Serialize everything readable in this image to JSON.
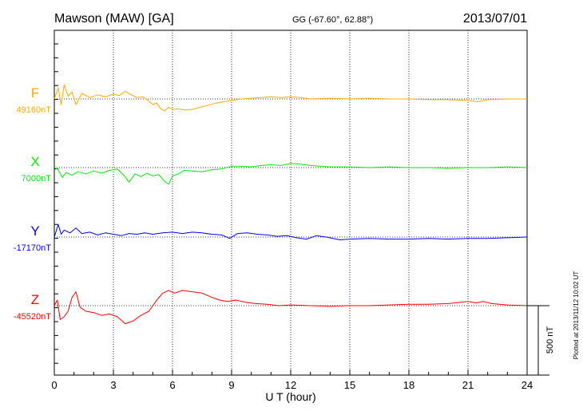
{
  "header": {
    "station": "Mawson (MAW)  [GA]",
    "coords": "GG (-67.60°,  62.88°)",
    "date": "2013/07/01"
  },
  "footer": {
    "plotted": "Plotted at 2013/11/12 10:02 UT"
  },
  "chart_data": {
    "type": "line",
    "xlabel": "U T (hour)",
    "xlim": [
      0,
      24
    ],
    "xticks": [
      0,
      3,
      6,
      9,
      12,
      15,
      18,
      21,
      24
    ],
    "scale_bar_label": "500 nT",
    "scale_bar_nT": 500,
    "grid": "dotted, every 3 hours and at each component baseline",
    "series": [
      {
        "name": "F",
        "baseline_label": "49160nT",
        "baseline": 49160,
        "color": "#ffaa00",
        "x": [
          0,
          0.2,
          0.35,
          0.5,
          0.7,
          0.9,
          1.1,
          1.4,
          1.8,
          2.2,
          2.6,
          3.0,
          3.3,
          3.6,
          3.9,
          4.2,
          4.5,
          4.8,
          5.0,
          5.2,
          5.4,
          5.6,
          5.8,
          6.0,
          6.3,
          6.6,
          7.0,
          7.4,
          7.8,
          8.2,
          8.6,
          9.0,
          9.5,
          10.0,
          10.5,
          11.0,
          11.5,
          12.0,
          12.5,
          13.0,
          14.0,
          15.0,
          16.0,
          17.0,
          18.0,
          19.0,
          20.0,
          21.0,
          21.5,
          22.0,
          23.0,
          24.0
        ],
        "y": [
          49160,
          49240,
          49120,
          49260,
          49180,
          49210,
          49120,
          49200,
          49170,
          49190,
          49175,
          49195,
          49185,
          49215,
          49190,
          49170,
          49175,
          49145,
          49120,
          49130,
          49090,
          49075,
          49100,
          49085,
          49090,
          49080,
          49085,
          49100,
          49115,
          49130,
          49140,
          49150,
          49160,
          49165,
          49170,
          49175,
          49170,
          49175,
          49170,
          49160,
          49165,
          49160,
          49165,
          49160,
          49160,
          49155,
          49155,
          49150,
          49140,
          49155,
          49160,
          49160
        ]
      },
      {
        "name": "X",
        "baseline_label": "7000nT",
        "baseline": 7000,
        "color": "#00ee00",
        "x": [
          0,
          0.2,
          0.4,
          0.6,
          0.9,
          1.2,
          1.6,
          2.0,
          2.4,
          2.8,
          3.2,
          3.5,
          3.8,
          4.1,
          4.4,
          4.7,
          5.0,
          5.3,
          5.6,
          5.8,
          6.0,
          6.3,
          6.6,
          7.0,
          7.5,
          8.0,
          8.5,
          9.0,
          9.5,
          10.0,
          10.5,
          11.0,
          11.5,
          12.0,
          12.5,
          13.0,
          13.5,
          14.0,
          15.0,
          16.0,
          17.0,
          18.0,
          19.0,
          20.0,
          21.0,
          22.0,
          23.0,
          24.0
        ],
        "y": [
          7000,
          6985,
          6930,
          6965,
          6945,
          6970,
          6955,
          6975,
          6960,
          6980,
          6990,
          6950,
          6895,
          6955,
          6935,
          6960,
          6940,
          6950,
          6900,
          6880,
          6940,
          6955,
          6980,
          6975,
          6970,
          6985,
          6990,
          7010,
          7010,
          7005,
          7015,
          7020,
          7015,
          7030,
          7025,
          7015,
          7010,
          7005,
          7005,
          7000,
          7005,
          7000,
          7000,
          6995,
          7000,
          7000,
          7005,
          7000
        ]
      },
      {
        "name": "Y",
        "baseline_label": "-17170nT",
        "baseline": -17170,
        "color": "#0000ff",
        "x": [
          0,
          0.2,
          0.35,
          0.5,
          0.8,
          1.1,
          1.4,
          1.8,
          2.2,
          2.6,
          3.0,
          3.4,
          3.8,
          4.2,
          4.6,
          5.0,
          5.5,
          6.0,
          6.5,
          7.0,
          7.5,
          8.0,
          8.5,
          8.9,
          9.3,
          9.8,
          10.3,
          10.8,
          11.3,
          11.8,
          12.3,
          12.8,
          13.3,
          13.8,
          14.5,
          15.0,
          16.0,
          17.0,
          18.0,
          19.0,
          20.0,
          21.0,
          22.0,
          23.0,
          24.0
        ],
        "y": [
          -17170,
          -17080,
          -17150,
          -17120,
          -17140,
          -17105,
          -17145,
          -17135,
          -17155,
          -17140,
          -17150,
          -17160,
          -17145,
          -17150,
          -17140,
          -17150,
          -17140,
          -17135,
          -17145,
          -17135,
          -17140,
          -17150,
          -17155,
          -17180,
          -17145,
          -17140,
          -17150,
          -17155,
          -17165,
          -17160,
          -17175,
          -17185,
          -17160,
          -17170,
          -17190,
          -17185,
          -17180,
          -17185,
          -17185,
          -17180,
          -17185,
          -17180,
          -17180,
          -17175,
          -17170
        ]
      },
      {
        "name": "Z",
        "baseline_label": "-45520nT",
        "baseline": -45520,
        "color": "#ff0000",
        "x": [
          0,
          0.15,
          0.3,
          0.5,
          0.7,
          0.9,
          1.1,
          1.3,
          1.6,
          2.0,
          2.4,
          2.8,
          3.2,
          3.6,
          4.0,
          4.4,
          4.8,
          5.2,
          5.5,
          5.8,
          6.1,
          6.5,
          7.0,
          7.5,
          8.0,
          8.4,
          8.8,
          9.2,
          9.7,
          10.2,
          10.8,
          11.4,
          12.0,
          13.0,
          14.0,
          15.0,
          16.0,
          17.0,
          18.0,
          19.0,
          20.0,
          21.0,
          21.4,
          21.8,
          22.2,
          23.0,
          24.0
        ],
        "y": [
          -45520,
          -45480,
          -45620,
          -45600,
          -45560,
          -45460,
          -45420,
          -45530,
          -45560,
          -45570,
          -45590,
          -45580,
          -45600,
          -45650,
          -45630,
          -45590,
          -45560,
          -45480,
          -45430,
          -45410,
          -45430,
          -45410,
          -45420,
          -45430,
          -45460,
          -45480,
          -45490,
          -45480,
          -45495,
          -45505,
          -45510,
          -45520,
          -45515,
          -45520,
          -45525,
          -45520,
          -45520,
          -45515,
          -45510,
          -45510,
          -45505,
          -45490,
          -45500,
          -45490,
          -45505,
          -45515,
          -45520
        ]
      }
    ]
  }
}
